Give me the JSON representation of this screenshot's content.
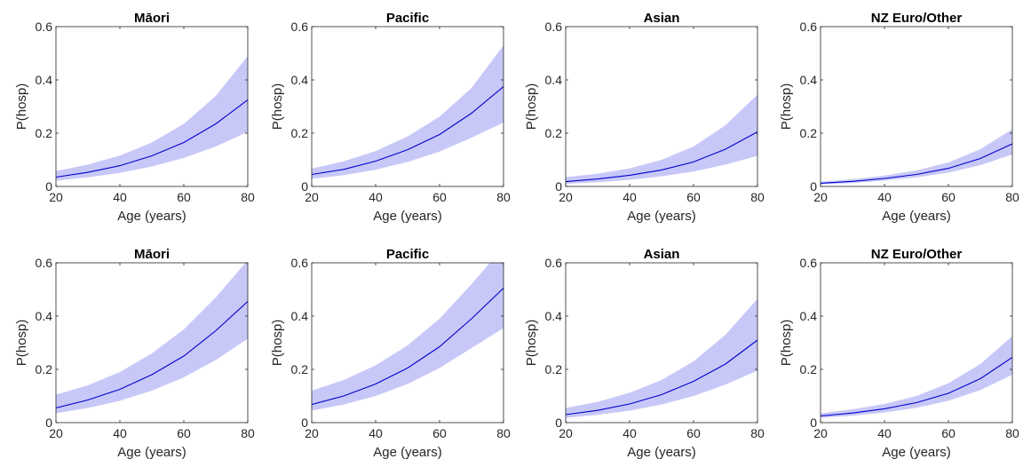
{
  "chart_data": [
    {
      "type": "line",
      "title": "Māori",
      "xlabel": "Age (years)",
      "ylabel": "P(hosp)",
      "xlim": [
        20,
        80
      ],
      "ylim": [
        0,
        0.6
      ],
      "xticks": [
        "20",
        "40",
        "60",
        "80"
      ],
      "yticks": [
        "0",
        "0.2",
        "0.4",
        "0.6"
      ],
      "x": [
        20,
        30,
        40,
        50,
        60,
        70,
        80
      ],
      "series": [
        {
          "values": [
            0.035,
            0.053,
            0.078,
            0.115,
            0.165,
            0.235,
            0.325
          ],
          "lower": [
            0.022,
            0.034,
            0.051,
            0.075,
            0.107,
            0.15,
            0.205
          ],
          "upper": [
            0.058,
            0.082,
            0.116,
            0.165,
            0.235,
            0.34,
            0.49
          ]
        }
      ]
    },
    {
      "type": "line",
      "title": "Pacific",
      "xlabel": "Age (years)",
      "ylabel": "P(hosp)",
      "xlim": [
        20,
        80
      ],
      "ylim": [
        0,
        0.6
      ],
      "xticks": [
        "20",
        "40",
        "60",
        "80"
      ],
      "yticks": [
        "0",
        "0.2",
        "0.4",
        "0.6"
      ],
      "x": [
        20,
        30,
        40,
        50,
        60,
        70,
        80
      ],
      "series": [
        {
          "values": [
            0.045,
            0.064,
            0.095,
            0.138,
            0.195,
            0.275,
            0.375
          ],
          "lower": [
            0.029,
            0.042,
            0.063,
            0.092,
            0.131,
            0.183,
            0.24
          ],
          "upper": [
            0.067,
            0.094,
            0.133,
            0.188,
            0.262,
            0.37,
            0.53
          ]
        }
      ]
    },
    {
      "type": "line",
      "title": "Asian",
      "xlabel": "Age (years)",
      "ylabel": "P(hosp)",
      "xlim": [
        20,
        80
      ],
      "ylim": [
        0,
        0.6
      ],
      "xticks": [
        "20",
        "40",
        "60",
        "80"
      ],
      "yticks": [
        "0",
        "0.2",
        "0.4",
        "0.6"
      ],
      "x": [
        20,
        30,
        40,
        50,
        60,
        70,
        80
      ],
      "series": [
        {
          "values": [
            0.018,
            0.028,
            0.042,
            0.062,
            0.092,
            0.14,
            0.205
          ],
          "lower": [
            0.01,
            0.016,
            0.025,
            0.038,
            0.056,
            0.082,
            0.115
          ],
          "upper": [
            0.035,
            0.048,
            0.068,
            0.1,
            0.15,
            0.23,
            0.345
          ]
        }
      ]
    },
    {
      "type": "line",
      "title": "NZ Euro/Other",
      "xlabel": "Age (years)",
      "ylabel": "P(hosp)",
      "xlim": [
        20,
        80
      ],
      "ylim": [
        0,
        0.6
      ],
      "xticks": [
        "20",
        "40",
        "60",
        "80"
      ],
      "yticks": [
        "0",
        "0.2",
        "0.4",
        "0.6"
      ],
      "x": [
        20,
        30,
        40,
        50,
        60,
        70,
        80
      ],
      "series": [
        {
          "values": [
            0.012,
            0.019,
            0.03,
            0.045,
            0.068,
            0.105,
            0.16
          ],
          "lower": [
            0.008,
            0.013,
            0.022,
            0.034,
            0.052,
            0.08,
            0.12
          ],
          "upper": [
            0.018,
            0.027,
            0.041,
            0.06,
            0.09,
            0.14,
            0.215
          ]
        }
      ]
    },
    {
      "type": "line",
      "title": "Māori",
      "xlabel": "Age (years)",
      "ylabel": "P(hosp)",
      "xlim": [
        20,
        80
      ],
      "ylim": [
        0,
        0.6
      ],
      "xticks": [
        "20",
        "40",
        "60",
        "80"
      ],
      "yticks": [
        "0",
        "0.2",
        "0.4",
        "0.6"
      ],
      "x": [
        20,
        30,
        40,
        50,
        60,
        70,
        80
      ],
      "series": [
        {
          "values": [
            0.055,
            0.085,
            0.125,
            0.18,
            0.25,
            0.345,
            0.455
          ],
          "lower": [
            0.035,
            0.055,
            0.082,
            0.12,
            0.17,
            0.235,
            0.315
          ],
          "upper": [
            0.105,
            0.14,
            0.19,
            0.26,
            0.35,
            0.47,
            0.61
          ]
        }
      ]
    },
    {
      "type": "line",
      "title": "Pacific",
      "xlabel": "Age (years)",
      "ylabel": "P(hosp)",
      "xlim": [
        20,
        80
      ],
      "ylim": [
        0,
        0.6
      ],
      "xticks": [
        "20",
        "40",
        "60",
        "80"
      ],
      "yticks": [
        "0",
        "0.2",
        "0.4",
        "0.6"
      ],
      "x": [
        20,
        30,
        40,
        50,
        60,
        70,
        80
      ],
      "series": [
        {
          "values": [
            0.068,
            0.1,
            0.145,
            0.205,
            0.285,
            0.39,
            0.505
          ],
          "lower": [
            0.045,
            0.068,
            0.1,
            0.145,
            0.205,
            0.28,
            0.355
          ],
          "upper": [
            0.12,
            0.16,
            0.215,
            0.29,
            0.39,
            0.52,
            0.66
          ]
        }
      ]
    },
    {
      "type": "line",
      "title": "Asian",
      "xlabel": "Age (years)",
      "ylabel": "P(hosp)",
      "xlim": [
        20,
        80
      ],
      "ylim": [
        0,
        0.6
      ],
      "xticks": [
        "20",
        "40",
        "60",
        "80"
      ],
      "yticks": [
        "0",
        "0.2",
        "0.4",
        "0.6"
      ],
      "x": [
        20,
        30,
        40,
        50,
        60,
        70,
        80
      ],
      "series": [
        {
          "values": [
            0.03,
            0.046,
            0.07,
            0.105,
            0.155,
            0.22,
            0.31
          ],
          "lower": [
            0.018,
            0.029,
            0.045,
            0.068,
            0.1,
            0.143,
            0.195
          ],
          "upper": [
            0.055,
            0.078,
            0.112,
            0.16,
            0.23,
            0.33,
            0.465
          ]
        }
      ]
    },
    {
      "type": "line",
      "title": "NZ Euro/Other",
      "xlabel": "Age (years)",
      "ylabel": "P(hosp)",
      "xlim": [
        20,
        80
      ],
      "ylim": [
        0,
        0.6
      ],
      "xticks": [
        "20",
        "40",
        "60",
        "80"
      ],
      "yticks": [
        "0",
        "0.2",
        "0.4",
        "0.6"
      ],
      "x": [
        20,
        30,
        40,
        50,
        60,
        70,
        80
      ],
      "series": [
        {
          "values": [
            0.025,
            0.036,
            0.052,
            0.075,
            0.11,
            0.165,
            0.245
          ],
          "lower": [
            0.018,
            0.026,
            0.038,
            0.056,
            0.082,
            0.122,
            0.18
          ],
          "upper": [
            0.035,
            0.05,
            0.07,
            0.1,
            0.148,
            0.22,
            0.325
          ]
        }
      ]
    }
  ],
  "colors": {
    "line": "#0000cc",
    "band": "#c8c8f8",
    "axis": "#262626"
  }
}
